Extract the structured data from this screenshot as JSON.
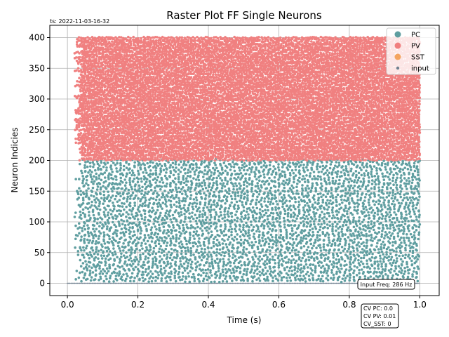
{
  "chart_data": {
    "type": "scatter",
    "title": "Raster Plot FF Single Neurons",
    "timestamp": "ts: 2022-11-03-16-32",
    "xlabel": "Time (s)",
    "ylabel": "Neuron Indicies",
    "xlim": [
      -0.05,
      1.055
    ],
    "ylim": [
      -20,
      420
    ],
    "xticks": [
      "0.0",
      "0.2",
      "0.4",
      "0.6",
      "0.8",
      "1.0"
    ],
    "yticks": [
      "0",
      "50",
      "100",
      "150",
      "200",
      "250",
      "300",
      "350",
      "400"
    ],
    "grid": true,
    "legend_position": "top-right",
    "series": [
      {
        "name": "PC",
        "color": "#5f9ea0",
        "neurons": [
          0,
          200
        ],
        "time_range": [
          0.02,
          1.0
        ],
        "marker": "dot"
      },
      {
        "name": "PV",
        "color": "#f08080",
        "neurons": [
          200,
          400
        ],
        "time_range": [
          0.02,
          1.0
        ],
        "marker": "dot"
      },
      {
        "name": "SST",
        "color": "#f4a460",
        "neurons": [],
        "time_range": [],
        "marker": "dot"
      },
      {
        "name": "input",
        "color": "#708090",
        "neurons": [
          0,
          0
        ],
        "time_range": [
          0.0,
          1.0
        ],
        "marker": "small-dot"
      }
    ],
    "annotations": {
      "input_freq": "Input Freq: 286 Hz",
      "cv_pc": "CV PC: 0.0",
      "cv_pv": "CV PV: 0.01",
      "cv_sst": "CV_SST: 0"
    }
  }
}
